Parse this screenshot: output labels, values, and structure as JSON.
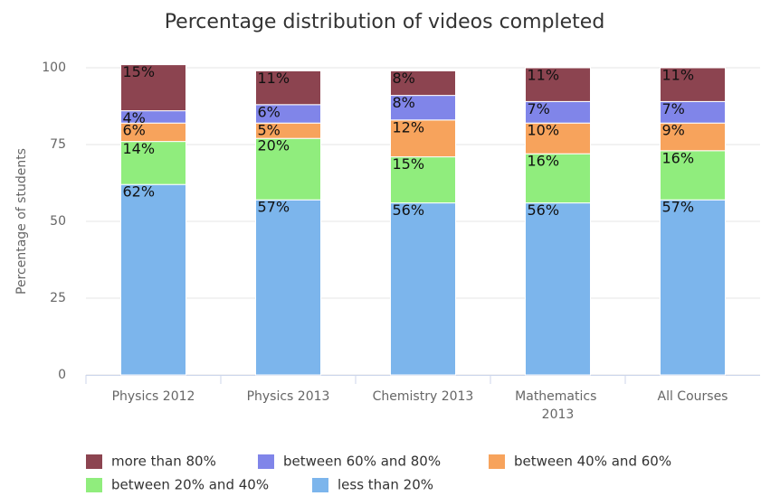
{
  "chart_data": {
    "type": "stacked_bar",
    "title": "Percentage distribution of videos completed",
    "y_label": "Percentage of students",
    "categories": [
      "Physics 2012",
      "Physics 2013",
      "Chemistry 2013",
      "Mathematics 2013",
      "All Courses"
    ],
    "series": [
      {
        "name": "more than 80%",
        "color": "#8c4450",
        "values": [
          15,
          11,
          8,
          11,
          11
        ],
        "value_labels": [
          "15%",
          "11%",
          "8%",
          "11%",
          "11%"
        ]
      },
      {
        "name": "between 60% and 80%",
        "color": "#8085e9",
        "values": [
          4,
          6,
          8,
          7,
          7
        ],
        "value_labels": [
          "4%",
          "6%",
          "8%",
          "7%",
          "7%"
        ]
      },
      {
        "name": "between 40% and 60%",
        "color": "#f7a35c",
        "values": [
          6,
          5,
          12,
          10,
          9
        ],
        "value_labels": [
          "6%",
          "5%",
          "12%",
          "10%",
          "9%"
        ]
      },
      {
        "name": "between 20% and 40%",
        "color": "#90ed7d",
        "values": [
          14,
          20,
          15,
          16,
          16
        ],
        "value_labels": [
          "14%",
          "20%",
          "15%",
          "16%",
          "16%"
        ]
      },
      {
        "name": "less than 20%",
        "color": "#7cb5ec",
        "values": [
          62,
          57,
          56,
          56,
          57
        ],
        "value_labels": [
          "62%",
          "57%",
          "56%",
          "56%",
          "57%"
        ]
      }
    ],
    "ylim": [
      0,
      100
    ],
    "yticks": [
      0,
      25,
      50,
      75,
      100
    ],
    "grid": true,
    "legend": "bottom"
  }
}
